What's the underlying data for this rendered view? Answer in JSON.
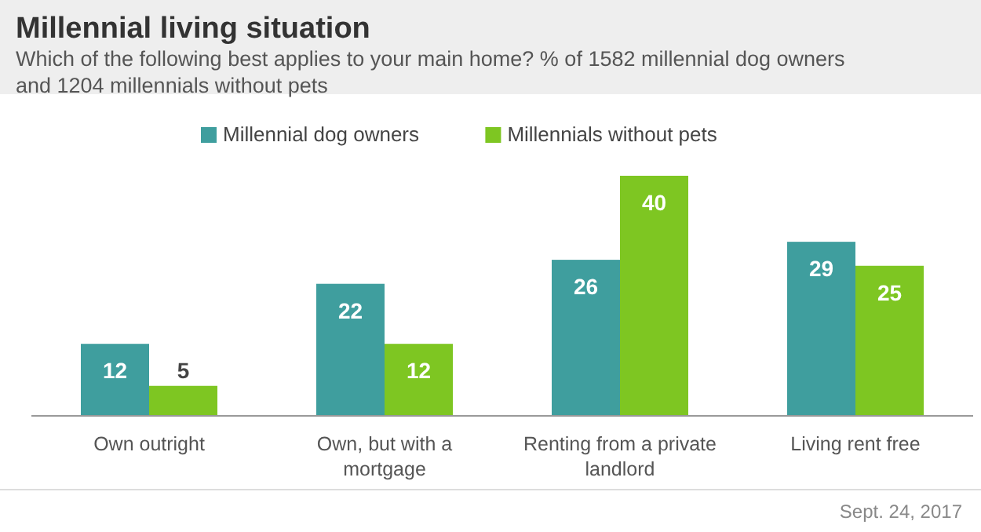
{
  "chart_data": {
    "type": "bar",
    "title": "Millennial living situation",
    "subtitle": "Which of the following best applies to your main home? % of 1582 millennial  dog owners and 1204 millennials  without pets",
    "categories": [
      "Own outright",
      "Own, but with a mortgage",
      "Renting from a private landlord",
      "Living rent free"
    ],
    "series": [
      {
        "name": "Millennial dog owners",
        "color": "#3f9e9e",
        "values": [
          12,
          22,
          26,
          29
        ]
      },
      {
        "name": "Millennials without pets",
        "color": "#7ec622",
        "values": [
          5,
          12,
          40,
          25
        ]
      }
    ],
    "data_labels": true,
    "legend": "top",
    "grid": false,
    "annotations": [
      "Sept. 24, 2017"
    ]
  }
}
